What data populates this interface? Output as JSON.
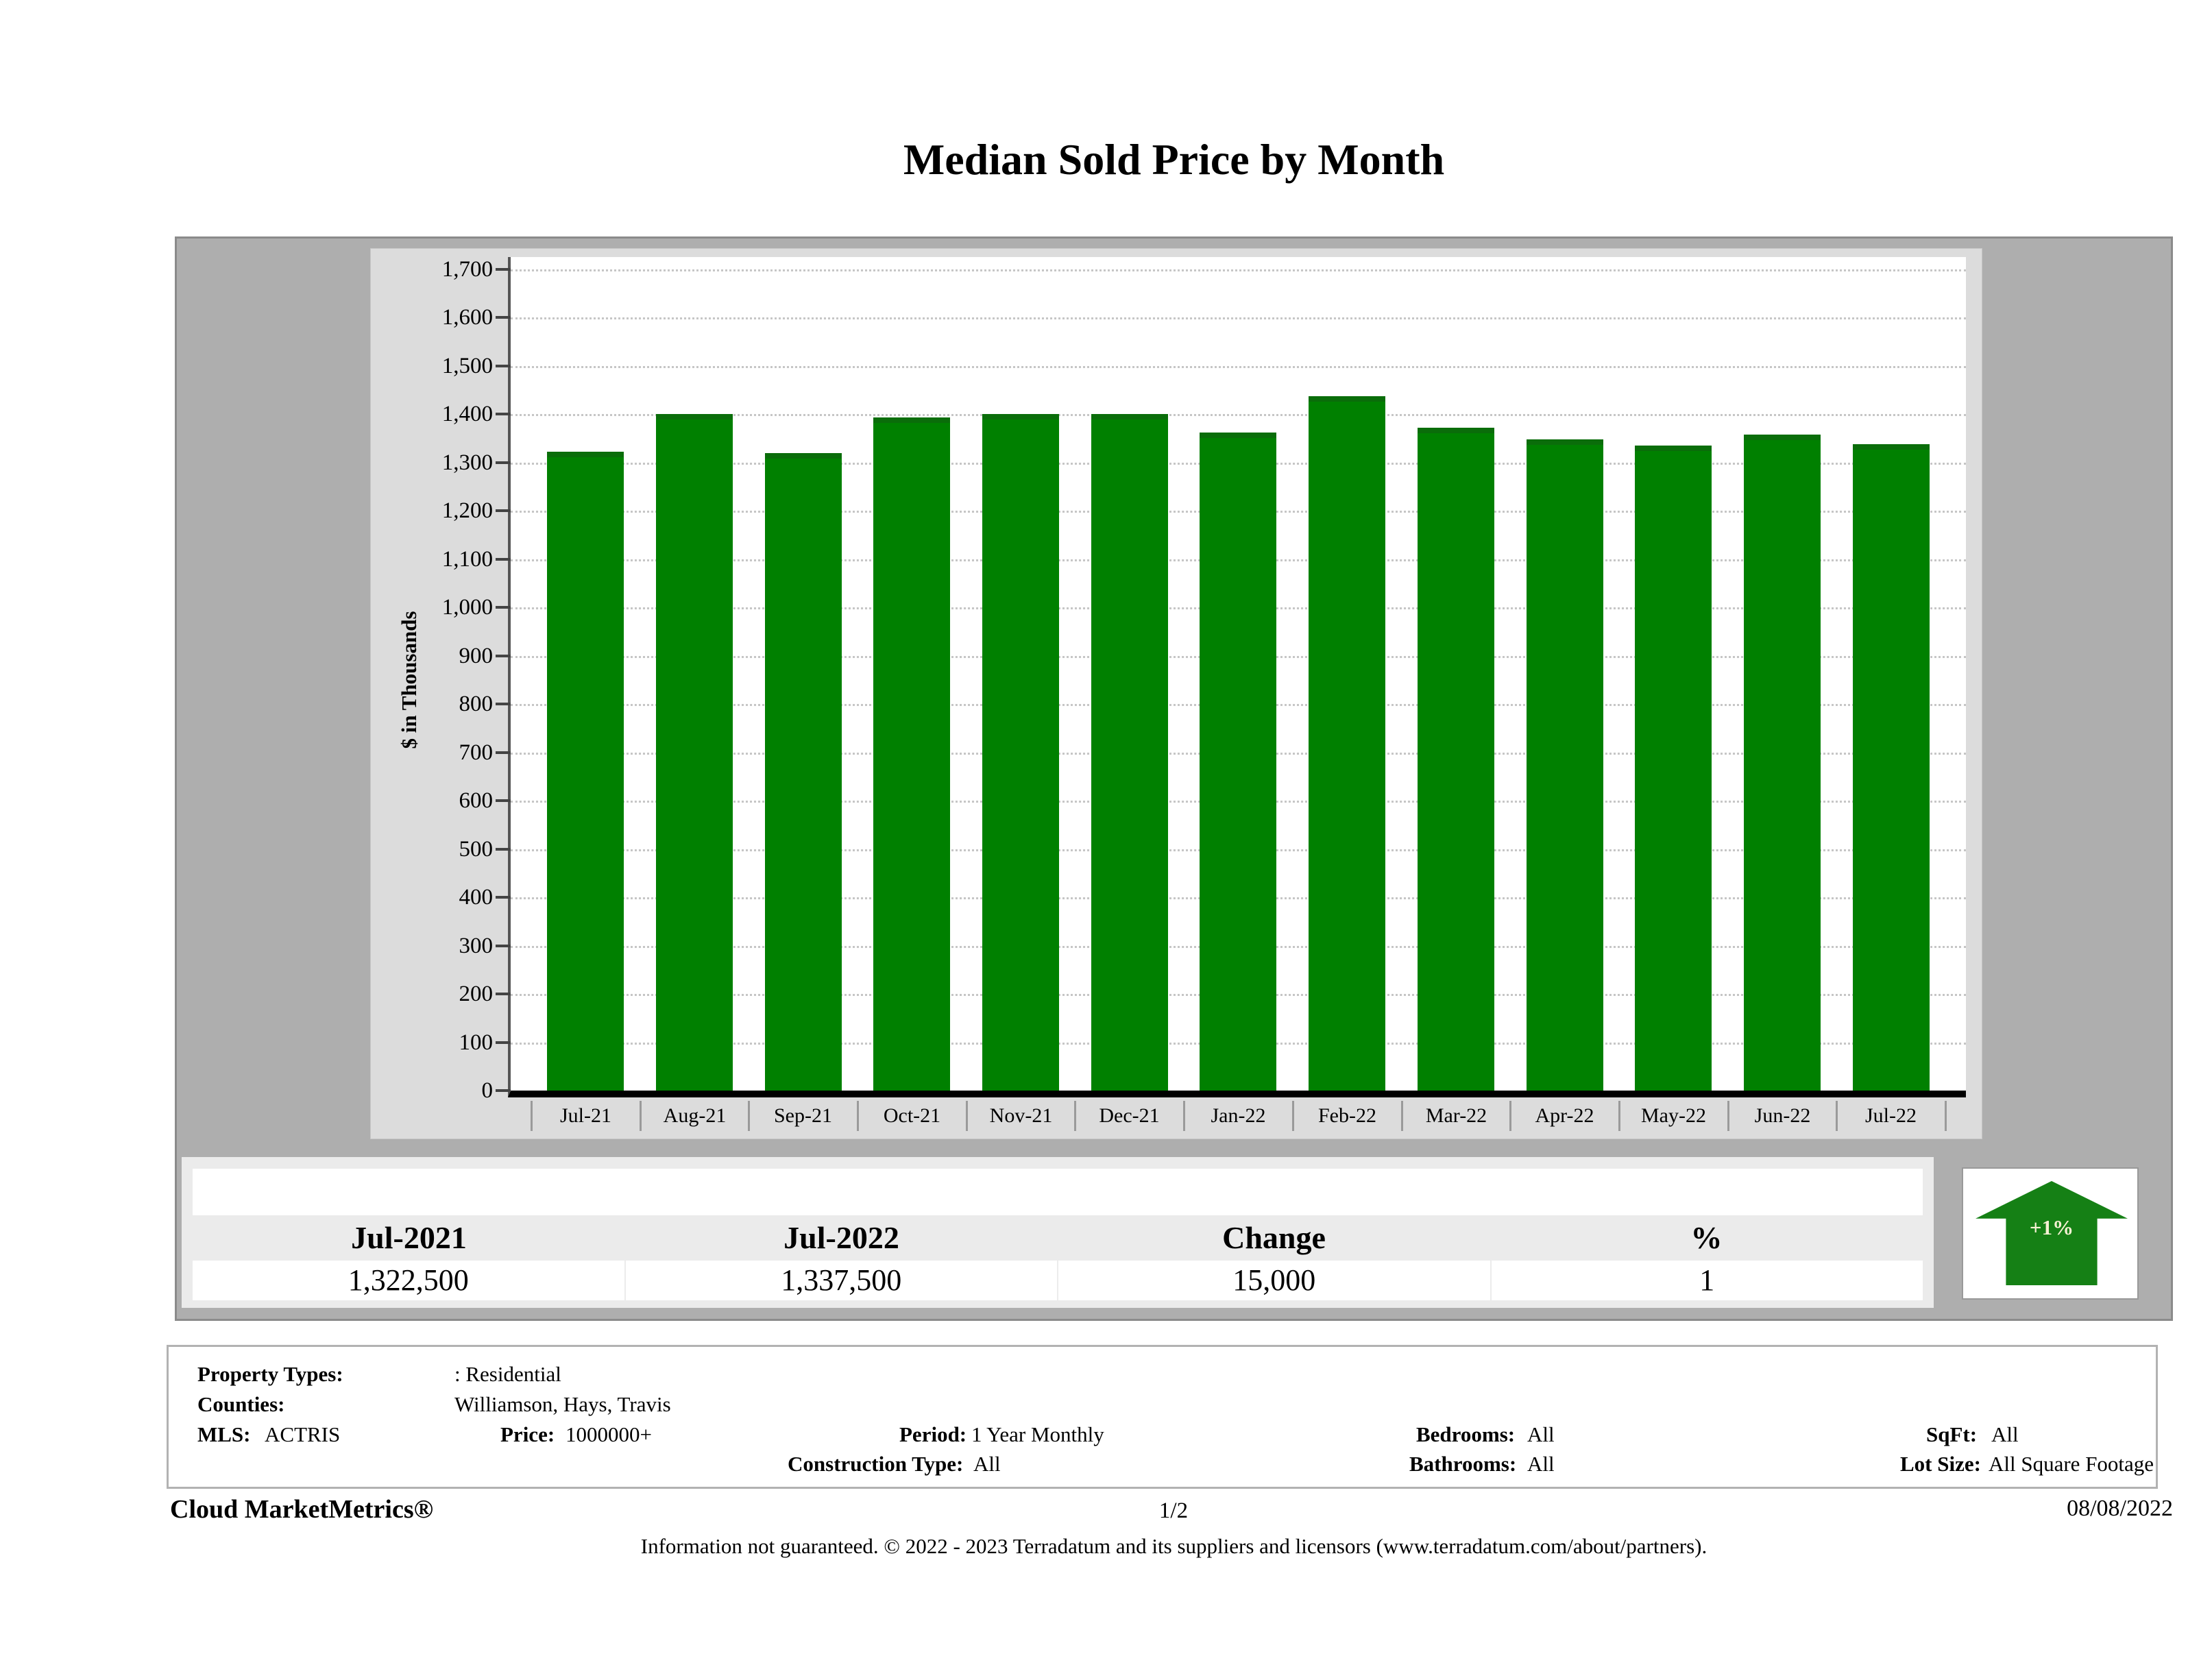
{
  "title": "Median Sold Price by Month",
  "chart_data": {
    "type": "bar",
    "title": "Median Sold Price by Month",
    "xlabel": "",
    "ylabel": "$ in Thousands",
    "categories": [
      "Jul-21",
      "Aug-21",
      "Sep-21",
      "Oct-21",
      "Nov-21",
      "Dec-21",
      "Jan-22",
      "Feb-22",
      "Mar-22",
      "Apr-22",
      "May-22",
      "Jun-22",
      "Jul-22"
    ],
    "values": [
      1322.5,
      1400,
      1320,
      1394,
      1400,
      1400,
      1362,
      1437,
      1372,
      1348,
      1335,
      1358,
      1337.5
    ],
    "units": "thousands of dollars",
    "ylim": [
      0,
      1700
    ],
    "ytick_step": 100,
    "ytick_labels": [
      "0",
      "100",
      "200",
      "300",
      "400",
      "500",
      "600",
      "700",
      "800",
      "900",
      "1,000",
      "1,100",
      "1,200",
      "1,300",
      "1,400",
      "1,500",
      "1,600",
      "1,700"
    ],
    "grid": "horizontal-dotted",
    "legend": "none",
    "bar_color": "#008000"
  },
  "summary_table": {
    "headers": [
      "Jul-2021",
      "Jul-2022",
      "Change",
      "%"
    ],
    "values": [
      "1,322,500",
      "1,337,500",
      "15,000",
      "1"
    ]
  },
  "trend_badge": {
    "label": "+1%",
    "direction": "up",
    "arrow_color": "#158015",
    "text_color": "#f6f1d3"
  },
  "filters": {
    "property_types_label": "Property Types:",
    "property_types": ": Residential",
    "counties_label": "Counties:",
    "counties": "Williamson, Hays, Travis",
    "mls_label": "MLS:",
    "mls": "ACTRIS",
    "price_label": "Price:",
    "price": "1000000+",
    "period_label": "Period:",
    "period": "1 Year Monthly",
    "construction_label": "Construction Type:",
    "construction": "All",
    "bedrooms_label": "Bedrooms:",
    "bedrooms": "All",
    "bathrooms_label": "Bathrooms:",
    "bathrooms": "All",
    "sqft_label": "SqFt:",
    "sqft": "All",
    "lot_label": "Lot Size:",
    "lot": "All Square Footage"
  },
  "footer": {
    "brand": "Cloud MarketMetrics®",
    "page": "1/2",
    "date": "08/08/2022",
    "disclaimer": "Information not guaranteed. © 2022 - 2023 Terradatum and its suppliers and licensors (www.terradatum.com/about/partners)."
  }
}
